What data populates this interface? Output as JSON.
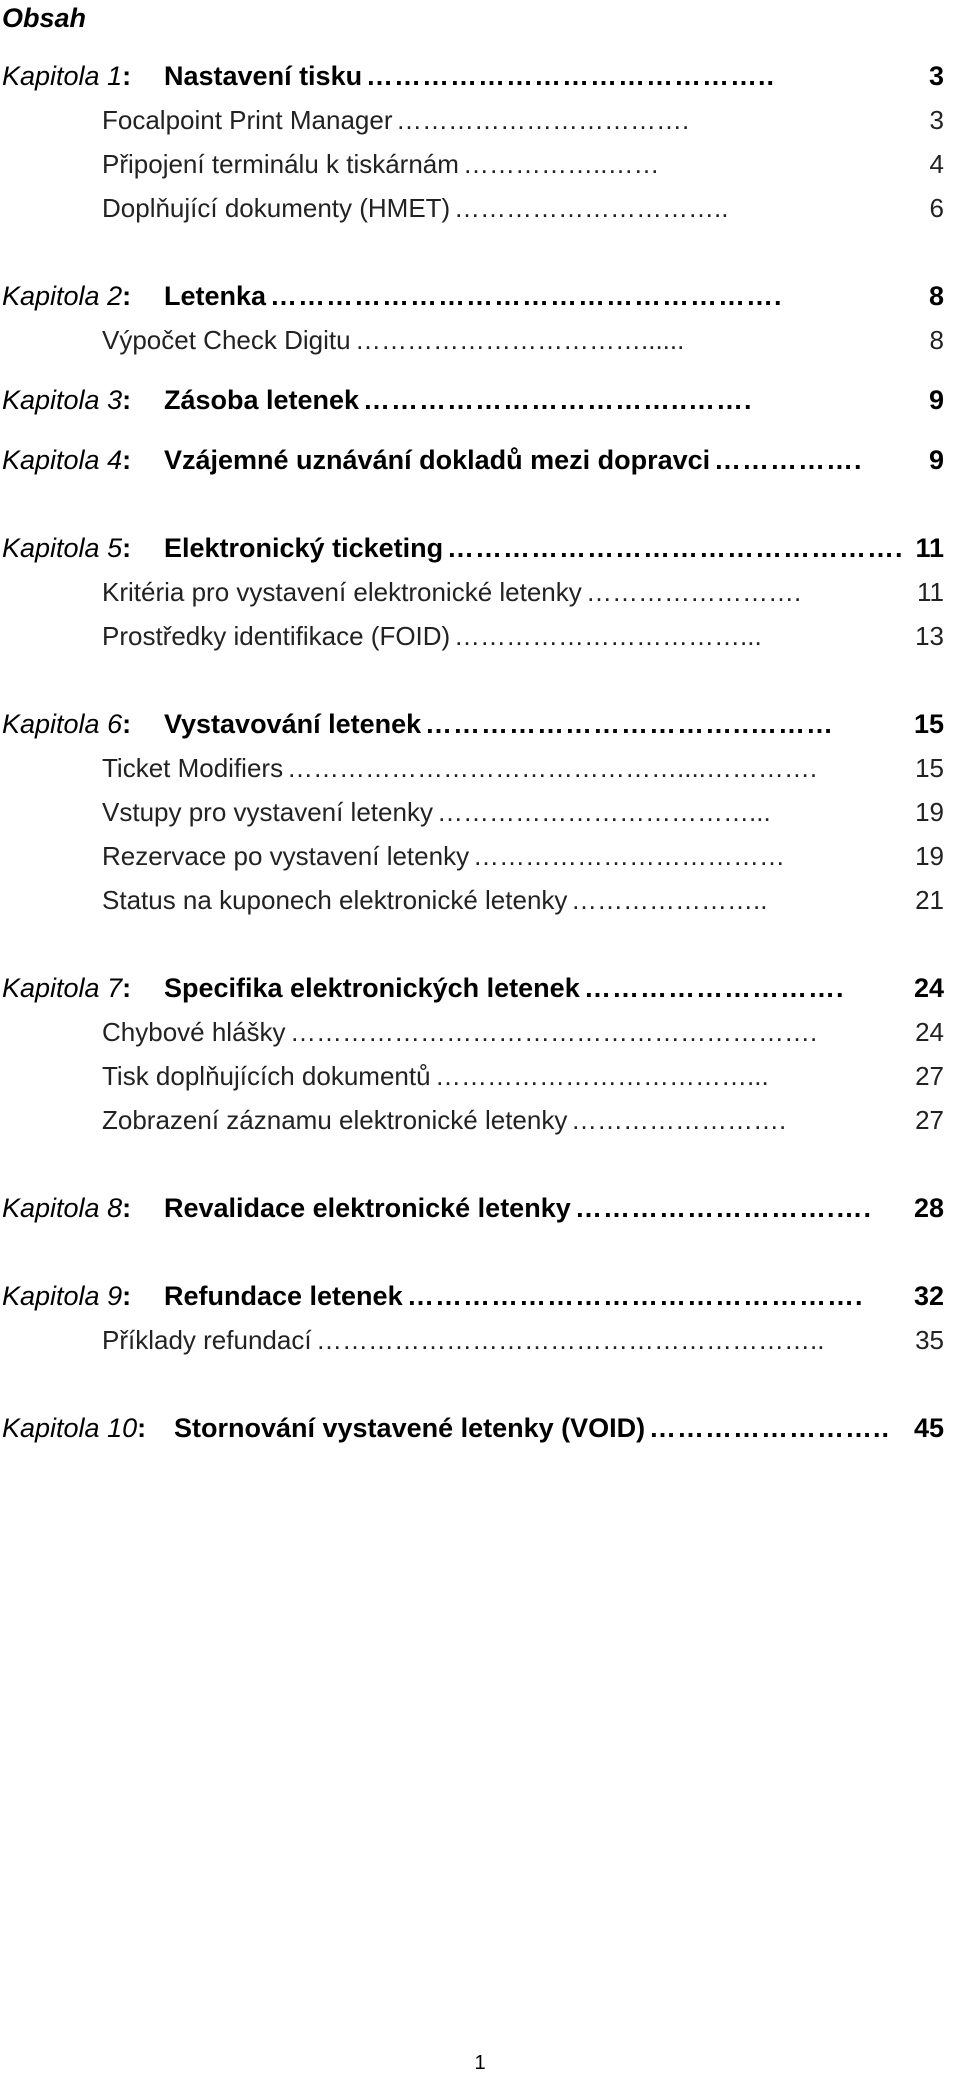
{
  "heading": "Obsah",
  "footer_page": "1",
  "entries": [
    {
      "kind": "chapter",
      "label": "Kapitola 1",
      "title": "Nastavení tisku",
      "dots": "……………………………………..",
      "page": "3"
    },
    {
      "kind": "section",
      "title": "Focalpoint Print Manager",
      "dots": "…………………………….",
      "page": "3"
    },
    {
      "kind": "section",
      "title": "Připojení terminálu k tiskárnám",
      "dots": "……………..……",
      "page": "4"
    },
    {
      "kind": "section",
      "title": "Doplňující dokumenty (HMET)",
      "dots": "…………………………..",
      "page": "6"
    },
    {
      "kind": "chapter",
      "label": "Kapitola 2",
      "title": "Letenka",
      "dots": "……………………………………………….",
      "page": "8"
    },
    {
      "kind": "section",
      "title": "Výpočet Check Digitu",
      "dots": "……………………………......",
      "page": "8"
    },
    {
      "kind": "chapter",
      "label": "Kapitola 3",
      "title": "Zásoba letenek",
      "dots": "……………………………..…….",
      "page": "9"
    },
    {
      "kind": "chapter",
      "label": "Kapitola 4",
      "title": "Vzájemné uznávání dokladů mezi dopravci",
      "dots": "…………….",
      "page": "9"
    },
    {
      "kind": "chapter",
      "label": "Kapitola 5",
      "title": "Elektronický ticketing",
      "dots": "………………………………………….",
      "page": "11"
    },
    {
      "kind": "section",
      "title": "Kritéria pro vystavení elektronické letenky",
      "dots": "…………………….",
      "page": "11"
    },
    {
      "kind": "section",
      "title": "Prostředky identifikace (FOID)",
      "dots": "……………………………...",
      "page": "13"
    },
    {
      "kind": "chapter",
      "label": "Kapitola 6",
      "title": "Vystavování letenek",
      "dots": "……………………………..………",
      "page": "15"
    },
    {
      "kind": "section",
      "title": "Ticket Modifiers",
      "dots": "………………………………………....………….",
      "page": "15"
    },
    {
      "kind": "section",
      "title": "Vstupy pro vystavení letenky",
      "dots": "………………………………...",
      "page": "19"
    },
    {
      "kind": "section",
      "title": "Rezervace po vystavení letenky",
      "dots": "………………………………",
      "page": "19"
    },
    {
      "kind": "section",
      "title": "Status na kuponech elektronické letenky",
      "dots": "…………………..",
      "page": "21"
    },
    {
      "kind": "chapter",
      "label": "Kapitola 7",
      "title": "Specifika elektronických letenek",
      "dots": "……………………….",
      "page": "24"
    },
    {
      "kind": "section",
      "title": "Chybové hlášky",
      "dots": "…………………………………………………….",
      "page": "24"
    },
    {
      "kind": "section",
      "title": "Tisk doplňujících dokumentů",
      "dots": "………………………………...",
      "page": "27"
    },
    {
      "kind": "section",
      "title": "Zobrazení záznamu elektronické letenky",
      "dots": "…………………….",
      "page": "27"
    },
    {
      "kind": "chapter",
      "label": "Kapitola 8",
      "title": "Revalidace elektronické letenky",
      "dots": "……………………….….",
      "page": "28"
    },
    {
      "kind": "chapter",
      "label": "Kapitola 9",
      "title": "Refundace letenek",
      "dots": "………………………………………….",
      "page": "32"
    },
    {
      "kind": "section",
      "title": "Příklady refundací",
      "dots": "…………………………………………………..",
      "page": "35"
    },
    {
      "kind": "chapter",
      "label": "Kapitola 10",
      "title": "Stornování vystavené letenky (VOID)",
      "dots": "……………………..",
      "page": "45"
    }
  ]
}
